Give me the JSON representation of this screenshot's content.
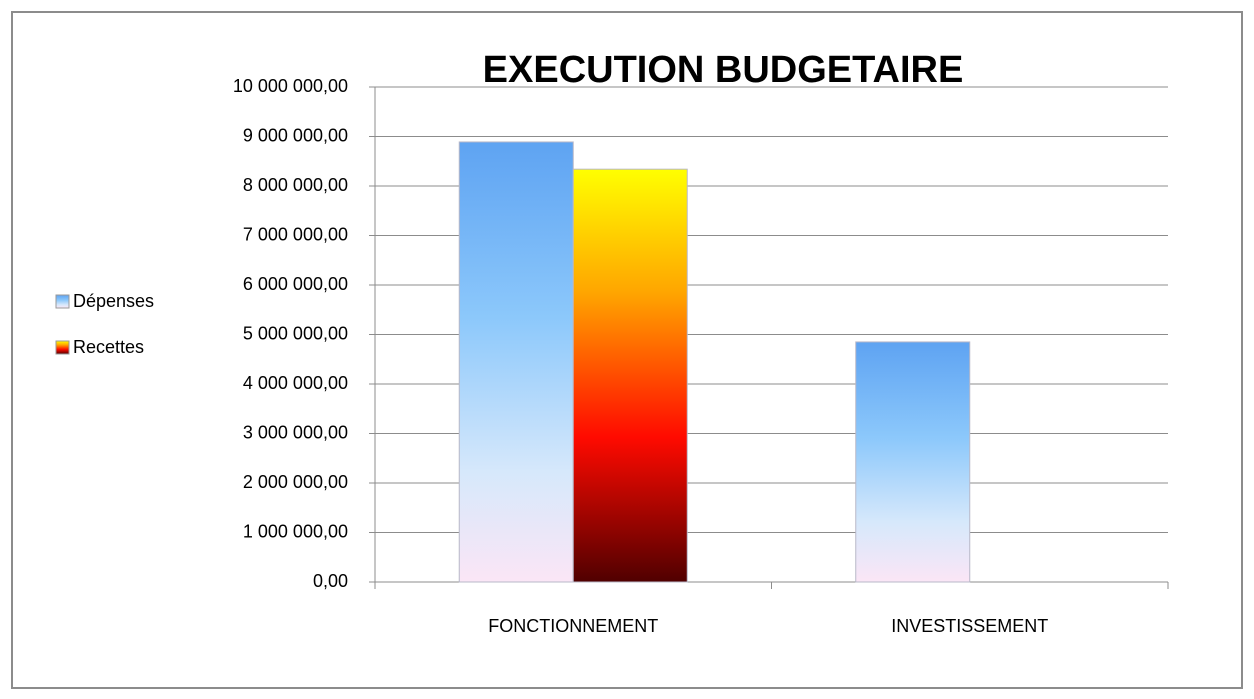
{
  "chart_data": {
    "type": "bar",
    "title": "EXECUTION BUDGETAIRE",
    "categories": [
      "FONCTIONNEMENT",
      "INVESTISSEMENT"
    ],
    "series": [
      {
        "name": "Dépenses",
        "color": "#5ea3f2",
        "values": [
          8890000,
          4850000
        ]
      },
      {
        "name": "Recettes",
        "color": "#ffff00",
        "values": [
          8340000,
          null
        ]
      }
    ],
    "ylim": [
      0,
      10000000
    ],
    "yticks": [
      {
        "value": 0,
        "label": "0,00"
      },
      {
        "value": 1000000,
        "label": "1 000 000,00"
      },
      {
        "value": 2000000,
        "label": "2 000 000,00"
      },
      {
        "value": 3000000,
        "label": "3 000 000,00"
      },
      {
        "value": 4000000,
        "label": "4 000 000,00"
      },
      {
        "value": 5000000,
        "label": "5 000 000,00"
      },
      {
        "value": 6000000,
        "label": "6 000 000,00"
      },
      {
        "value": 7000000,
        "label": "7 000 000,00"
      },
      {
        "value": 8000000,
        "label": "8 000 000,00"
      },
      {
        "value": 9000000,
        "label": "9 000 000,00"
      },
      {
        "value": 10000000,
        "label": "10 000 000,00"
      }
    ],
    "grid": true,
    "legend": "left"
  }
}
